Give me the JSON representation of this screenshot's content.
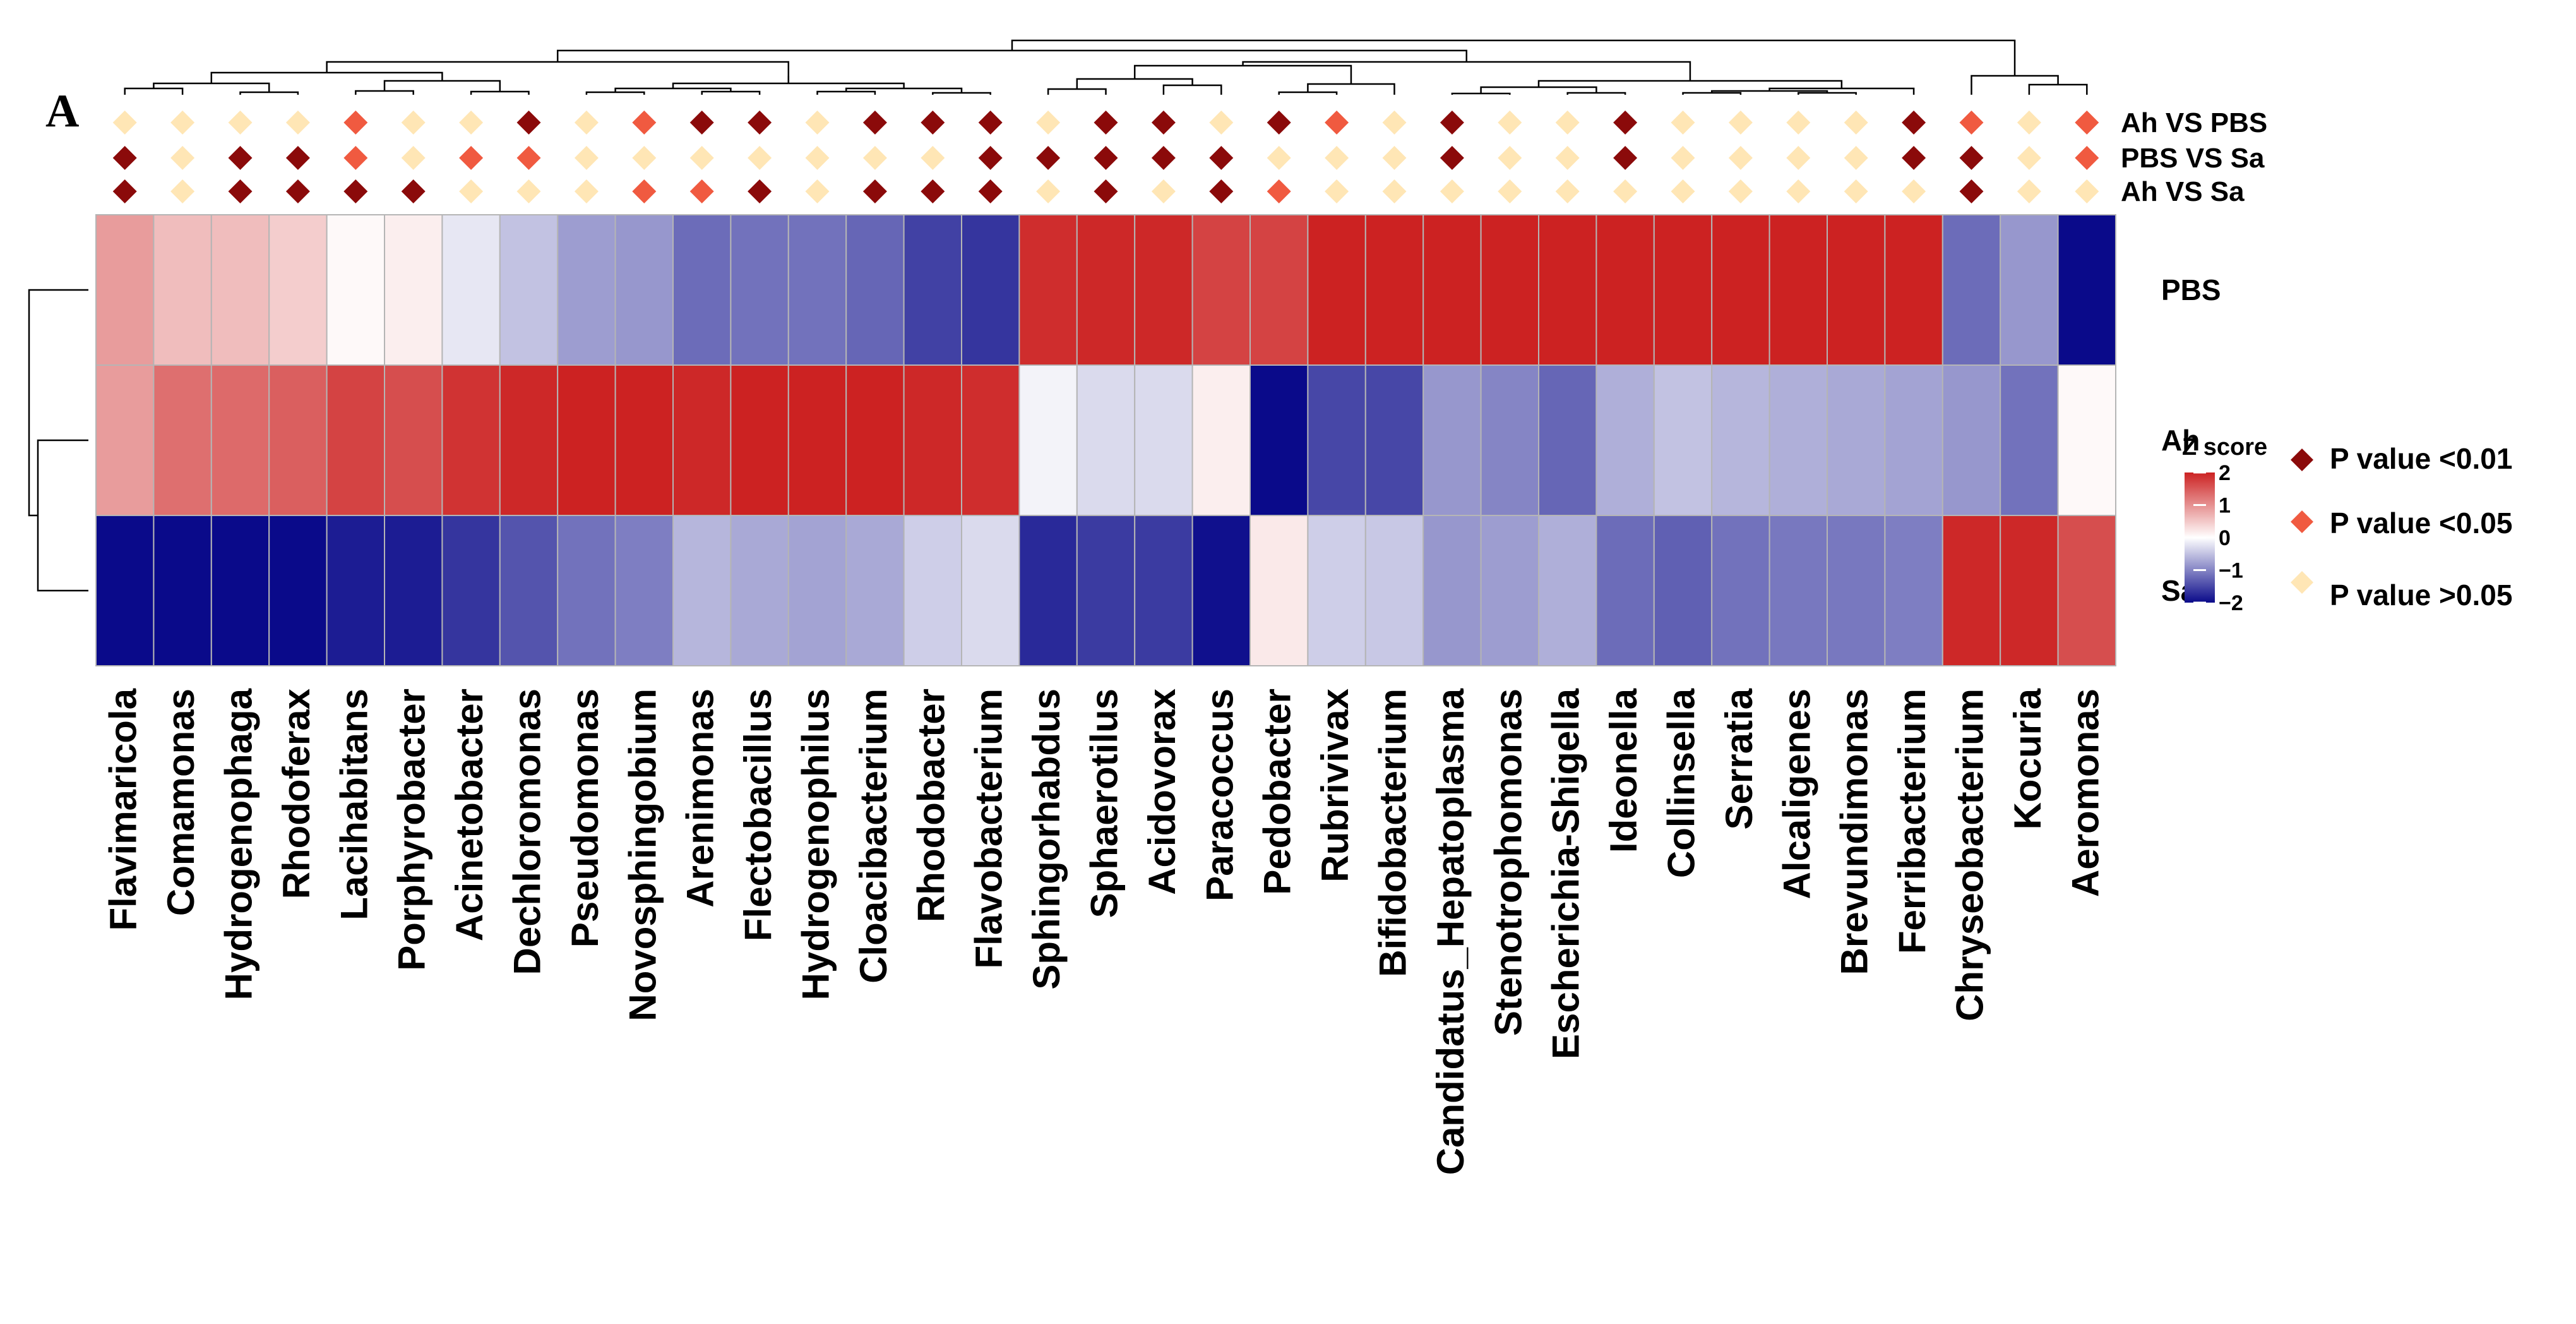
{
  "panel_label": "A",
  "chart_data": {
    "type": "heatmap",
    "columns": [
      "Flavimaricola",
      "Comamonas",
      "Hydrogenophaga",
      "Rhodoferax",
      "Lacihabitans",
      "Porphyrobacter",
      "Acinetobacter",
      "Dechloromonas",
      "Pseudomonas",
      "Novosphingobium",
      "Arenimonas",
      "Flectobacillus",
      "Hydrogenophilus",
      "Cloacibacterium",
      "Rhodobacter",
      "Flavobacterium",
      "Sphingorhabdus",
      "Sphaerotilus",
      "Acidovorax",
      "Paracoccus",
      "Pedobacter",
      "Rubrivivax",
      "Bifidobacterium",
      "Candidatus_Hepatoplasma",
      "Stenotrophomonas",
      "Escherichia-Shigella",
      "Ideonella",
      "Collinsella",
      "Serratia",
      "Alcaligenes",
      "Brevundimonas",
      "Ferribacterium",
      "Chryseobacterium",
      "Kocuria",
      "Aeromonas"
    ],
    "rows": [
      "PBS",
      "Ah",
      "Sa"
    ],
    "values": [
      [
        0.9,
        0.6,
        0.6,
        0.45,
        0.05,
        0.15,
        -0.2,
        -0.5,
        -0.8,
        -0.85,
        -1.2,
        -1.15,
        -1.15,
        -1.25,
        -1.55,
        -1.65,
        1.9,
        1.95,
        1.95,
        1.7,
        1.7,
        2.0,
        2.0,
        2.0,
        2.0,
        2.0,
        2.0,
        2.0,
        2.0,
        2.0,
        2.0,
        2.0,
        -1.2,
        -0.85,
        -2.0
      ],
      [
        0.9,
        1.3,
        1.35,
        1.45,
        1.7,
        1.6,
        1.85,
        1.95,
        2.0,
        2.0,
        1.95,
        2.0,
        2.0,
        2.0,
        1.95,
        1.9,
        -0.1,
        -0.3,
        -0.3,
        0.15,
        -2.0,
        -1.5,
        -1.5,
        -0.85,
        -1.0,
        -1.25,
        -0.65,
        -0.5,
        -0.6,
        -0.65,
        -0.7,
        -0.75,
        -0.85,
        -1.15,
        0.05
      ],
      [
        -2.0,
        -2.0,
        -2.0,
        -2.0,
        -1.85,
        -1.85,
        -1.65,
        -1.4,
        -1.15,
        -1.05,
        -0.6,
        -0.7,
        -0.75,
        -0.7,
        -0.4,
        -0.3,
        -1.75,
        -1.6,
        -1.6,
        -1.95,
        0.2,
        -0.4,
        -0.45,
        -0.85,
        -0.8,
        -0.65,
        -1.2,
        -1.3,
        -1.15,
        -1.1,
        -1.1,
        -1.05,
        1.95,
        1.95,
        1.6
      ]
    ],
    "significance_rows": [
      "Ah VS PBS",
      "PBS VS Sa",
      "Ah VS Sa"
    ],
    "significance": [
      [
        "n",
        "n",
        "n",
        "n",
        "m",
        "n",
        "n",
        "s",
        "n",
        "m",
        "s",
        "s",
        "n",
        "s",
        "s",
        "s",
        "n",
        "s",
        "s",
        "n",
        "s",
        "m",
        "n",
        "s",
        "n",
        "n",
        "s",
        "n",
        "n",
        "n",
        "n",
        "s",
        "m",
        "n",
        "m"
      ],
      [
        "s",
        "n",
        "s",
        "s",
        "m",
        "n",
        "m",
        "m",
        "n",
        "n",
        "n",
        "n",
        "n",
        "n",
        "n",
        "s",
        "s",
        "s",
        "s",
        "s",
        "n",
        "n",
        "n",
        "s",
        "n",
        "n",
        "s",
        "n",
        "n",
        "n",
        "n",
        "s",
        "s",
        "n",
        "m"
      ],
      [
        "s",
        "n",
        "s",
        "s",
        "s",
        "s",
        "n",
        "n",
        "n",
        "m",
        "m",
        "s",
        "n",
        "s",
        "s",
        "s",
        "n",
        "s",
        "n",
        "s",
        "m",
        "n",
        "n",
        "n",
        "n",
        "n",
        "n",
        "n",
        "n",
        "n",
        "n",
        "n",
        "s",
        "n",
        "n"
      ]
    ],
    "legend": {
      "title": "Z score",
      "ticks": [
        2,
        1,
        0,
        -1,
        -2
      ],
      "range": [
        -2,
        2
      ],
      "colors": {
        "low": "#0a0a8a",
        "mid": "#ffffff",
        "high": "#cc2222"
      }
    },
    "significance_legend": [
      {
        "key": "s",
        "label": "P value <0.01",
        "color": "#8b0a0a"
      },
      {
        "key": "m",
        "label": "P value <0.05",
        "color": "#f05a40"
      },
      {
        "key": "n",
        "label": "P value >0.05",
        "color": "#ffe6b5"
      }
    ]
  }
}
